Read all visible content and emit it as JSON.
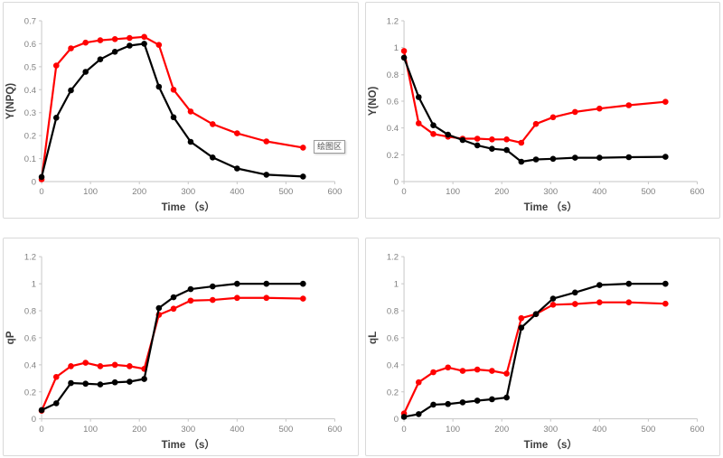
{
  "page": {
    "background": "#ffffff"
  },
  "tooltip": {
    "text": "绘图区"
  },
  "colors": {
    "red_series": "#ff0000",
    "black_series": "#000000",
    "axis_line": "#c6c6c6",
    "tick_text": "#808080",
    "axis_title_text": "#3f3f3f",
    "panel_border": "#d9d9d9"
  },
  "chart_data": [
    {
      "type": "line",
      "id": "y-npq",
      "ylabel": "Y(NPQ)",
      "xlabel": "Time （s）",
      "xlim": [
        0,
        600
      ],
      "ylim": [
        0,
        0.7
      ],
      "xticks": [
        0,
        100,
        200,
        300,
        400,
        500,
        600
      ],
      "yticks": [
        0,
        0.1,
        0.2,
        0.3,
        0.4,
        0.5,
        0.6,
        0.7
      ],
      "grid": false,
      "legend": "none",
      "x": [
        0,
        30,
        60,
        90,
        120,
        150,
        180,
        210,
        240,
        270,
        305,
        350,
        400,
        460,
        535
      ],
      "series": [
        {
          "name": "red-series",
          "color": "#ff0000",
          "values": [
            0.01,
            0.505,
            0.58,
            0.605,
            0.615,
            0.62,
            0.625,
            0.63,
            0.595,
            0.4,
            0.305,
            0.25,
            0.21,
            0.175,
            0.148
          ]
        },
        {
          "name": "black-series",
          "color": "#000000",
          "values": [
            0.02,
            0.278,
            0.397,
            0.478,
            0.532,
            0.565,
            0.592,
            0.6,
            0.413,
            0.28,
            0.173,
            0.105,
            0.057,
            0.03,
            0.022
          ]
        }
      ]
    },
    {
      "type": "line",
      "id": "y-no",
      "ylabel": "Y(NO)",
      "xlabel": "Time （s）",
      "xlim": [
        0,
        600
      ],
      "ylim": [
        0,
        1.2
      ],
      "xticks": [
        0,
        100,
        200,
        300,
        400,
        500,
        600
      ],
      "yticks": [
        0,
        0.2,
        0.4,
        0.6,
        0.8,
        1,
        1.2
      ],
      "grid": false,
      "legend": "none",
      "x": [
        0,
        30,
        60,
        90,
        120,
        150,
        180,
        210,
        240,
        270,
        305,
        350,
        400,
        460,
        535
      ],
      "series": [
        {
          "name": "red-series",
          "color": "#ff0000",
          "values": [
            0.975,
            0.435,
            0.355,
            0.335,
            0.32,
            0.32,
            0.315,
            0.315,
            0.29,
            0.43,
            0.48,
            0.52,
            0.545,
            0.57,
            0.595
          ]
        },
        {
          "name": "black-series",
          "color": "#000000",
          "values": [
            0.925,
            0.63,
            0.42,
            0.35,
            0.31,
            0.27,
            0.245,
            0.235,
            0.148,
            0.165,
            0.17,
            0.178,
            0.178,
            0.182,
            0.185
          ]
        }
      ]
    },
    {
      "type": "line",
      "id": "qp",
      "ylabel": "qP",
      "xlabel": "Time （s）",
      "xlim": [
        0,
        600
      ],
      "ylim": [
        0,
        1.2
      ],
      "xticks": [
        0,
        100,
        200,
        300,
        400,
        500,
        600
      ],
      "yticks": [
        0,
        0.2,
        0.4,
        0.6,
        0.8,
        1,
        1.2
      ],
      "grid": false,
      "legend": "none",
      "x": [
        0,
        30,
        60,
        90,
        120,
        150,
        180,
        210,
        240,
        270,
        305,
        350,
        400,
        460,
        535
      ],
      "series": [
        {
          "name": "red-series",
          "color": "#ff0000",
          "values": [
            0.06,
            0.31,
            0.39,
            0.415,
            0.39,
            0.4,
            0.39,
            0.37,
            0.77,
            0.815,
            0.875,
            0.88,
            0.895,
            0.895,
            0.89
          ]
        },
        {
          "name": "black-series",
          "color": "#000000",
          "values": [
            0.065,
            0.115,
            0.265,
            0.26,
            0.255,
            0.27,
            0.275,
            0.295,
            0.82,
            0.9,
            0.96,
            0.98,
            1.0,
            1.0,
            1.0
          ]
        }
      ]
    },
    {
      "type": "line",
      "id": "ql",
      "ylabel": "qL",
      "xlabel": "Time （s）",
      "xlim": [
        0,
        600
      ],
      "ylim": [
        0,
        1.2
      ],
      "xticks": [
        0,
        100,
        200,
        300,
        400,
        500,
        600
      ],
      "yticks": [
        0,
        0.2,
        0.4,
        0.6,
        0.8,
        1,
        1.2
      ],
      "grid": false,
      "legend": "none",
      "x": [
        0,
        30,
        60,
        90,
        120,
        150,
        180,
        210,
        240,
        270,
        305,
        350,
        400,
        460,
        535
      ],
      "series": [
        {
          "name": "red-series",
          "color": "#ff0000",
          "values": [
            0.04,
            0.27,
            0.345,
            0.38,
            0.355,
            0.365,
            0.355,
            0.335,
            0.745,
            0.775,
            0.845,
            0.85,
            0.862,
            0.862,
            0.852
          ]
        },
        {
          "name": "black-series",
          "color": "#000000",
          "values": [
            0.015,
            0.035,
            0.105,
            0.11,
            0.122,
            0.135,
            0.145,
            0.158,
            0.675,
            0.775,
            0.89,
            0.935,
            0.99,
            1.0,
            1.0
          ]
        }
      ]
    }
  ]
}
